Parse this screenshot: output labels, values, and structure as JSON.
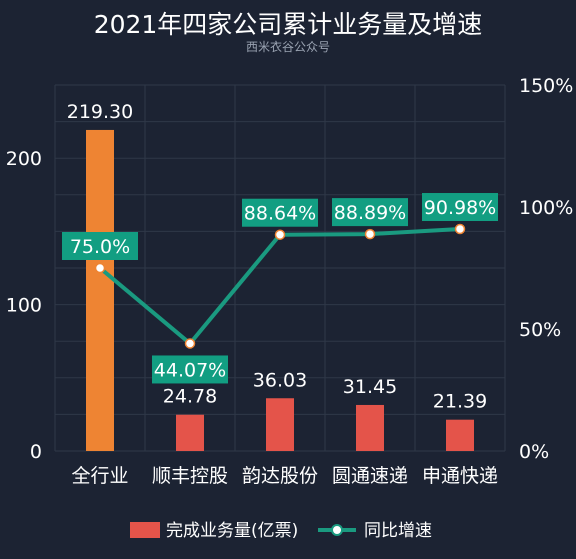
{
  "chart_data": {
    "type": "bar",
    "title": "2021年四家公司累计业务量及增速",
    "subtitle": "西米衣谷公众号",
    "categories": [
      "全行业",
      "顺丰控股",
      "韵达股份",
      "圆通速递",
      "申通快递"
    ],
    "series": [
      {
        "name": "完成业务量(亿票)",
        "type": "bar",
        "axis": "left",
        "values": [
          219.3,
          24.78,
          36.03,
          31.45,
          21.39
        ],
        "labels": [
          "219.30",
          "24.78",
          "36.03",
          "31.45",
          "21.39"
        ],
        "colors": [
          "#ee8433",
          "#e4544a",
          "#e4544a",
          "#e4544a",
          "#e4544a"
        ]
      },
      {
        "name": "同比增速",
        "type": "line",
        "axis": "right",
        "values": [
          75.0,
          44.07,
          88.64,
          88.89,
          90.98
        ],
        "labels": [
          "75.0%",
          "44.07%",
          "88.64%",
          "88.89%",
          "90.98%"
        ],
        "color": "#1a9a80"
      }
    ],
    "y_left": {
      "ylim": [
        0,
        250
      ],
      "ticks": [
        0,
        100,
        200
      ],
      "tick_labels": [
        "0",
        "100",
        "200"
      ]
    },
    "y_right": {
      "ylim": [
        0,
        150
      ],
      "ticks": [
        0,
        50,
        100,
        150
      ],
      "tick_labels": [
        "0%",
        "50%",
        "100%",
        "150%"
      ]
    },
    "grid": true,
    "legend": "bottom"
  },
  "colors": {
    "background": "#1c2333",
    "grid": "#2f3848",
    "line": "#1a9a80",
    "label_box": "#129e82"
  }
}
